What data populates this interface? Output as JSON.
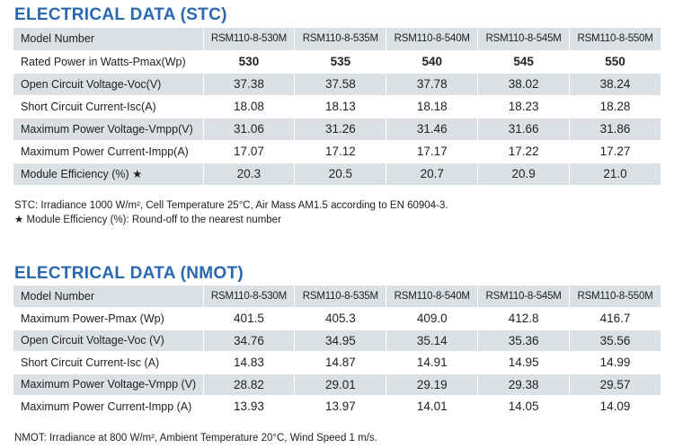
{
  "stc": {
    "title": "ELECTRICAL DATA (STC)",
    "header_label": "Model Number",
    "models": [
      "RSM110-8-530M",
      "RSM110-8-535M",
      "RSM110-8-540M",
      "RSM110-8-545M",
      "RSM110-8-550M"
    ],
    "rows": [
      {
        "label": "Rated Power in Watts-Pmax(Wp)",
        "values": [
          "530",
          "535",
          "540",
          "545",
          "550"
        ]
      },
      {
        "label": "Open Circuit Voltage-Voc(V)",
        "values": [
          "37.38",
          "37.58",
          "37.78",
          "38.02",
          "38.24"
        ]
      },
      {
        "label": "Short Circuit Current-Isc(A)",
        "values": [
          "18.08",
          "18.13",
          "18.18",
          "18.23",
          "18.28"
        ]
      },
      {
        "label": "Maximum Power Voltage-Vmpp(V)",
        "values": [
          "31.06",
          "31.26",
          "31.46",
          "31.66",
          "31.86"
        ]
      },
      {
        "label": "Maximum Power Current-Impp(A)",
        "values": [
          "17.07",
          "17.12",
          "17.17",
          "17.22",
          "17.27"
        ]
      },
      {
        "label": "Module Efficiency (%) ★",
        "values": [
          "20.3",
          "20.5",
          "20.7",
          "20.9",
          "21.0"
        ]
      }
    ],
    "note1": "STC: Irradiance 1000 W/m², Cell Temperature 25°C, Air Mass AM1.5 according to EN 60904-3.",
    "note2": "★ Module Efficiency (%): Round-off to the nearest number"
  },
  "nmot": {
    "title": "ELECTRICAL DATA (NMOT)",
    "header_label": "Model Number",
    "models": [
      "RSM110-8-530M",
      "RSM110-8-535M",
      "RSM110-8-540M",
      "RSM110-8-545M",
      "RSM110-8-550M"
    ],
    "rows": [
      {
        "label": "Maximum Power-Pmax (Wp)",
        "values": [
          "401.5",
          "405.3",
          "409.0",
          "412.8",
          "416.7"
        ]
      },
      {
        "label": "Open Circuit Voltage-Voc (V)",
        "values": [
          "34.76",
          "34.95",
          "35.14",
          "35.36",
          "35.56"
        ]
      },
      {
        "label": "Short Circuit Current-Isc (A)",
        "values": [
          "14.83",
          "14.87",
          "14.91",
          "14.95",
          "14.99"
        ]
      },
      {
        "label": "Maximum Power Voltage-Vmpp (V)",
        "values": [
          "28.82",
          "29.01",
          "29.19",
          "29.38",
          "29.57"
        ]
      },
      {
        "label": "Maximum Power Current-Impp (A)",
        "values": [
          "13.93",
          "13.97",
          "14.01",
          "14.05",
          "14.09"
        ]
      }
    ],
    "note": "NMOT: Irradiance at 800 W/m², Ambient Temperature 20°C, Wind Speed 1 m/s."
  }
}
